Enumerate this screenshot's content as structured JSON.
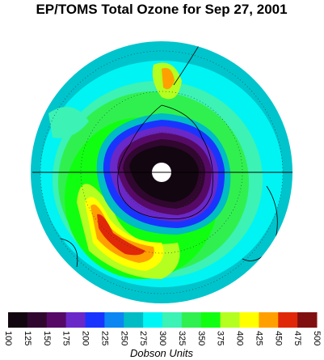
{
  "title": "EP/TOMS Total Ozone for Sep 27, 2001",
  "colorbar": {
    "label": "Dobson Units",
    "ticks": [
      100,
      125,
      150,
      175,
      200,
      225,
      250,
      275,
      300,
      325,
      350,
      375,
      400,
      425,
      450,
      475,
      500
    ],
    "colors": [
      "#120610",
      "#30072e",
      "#560a66",
      "#6a28c8",
      "#1a34ff",
      "#0c86f2",
      "#00bcc4",
      "#00f6f6",
      "#3cf2b4",
      "#30f050",
      "#10ff10",
      "#b4ff20",
      "#ffff00",
      "#ffa000",
      "#e02808",
      "#801010",
      "#401010"
    ]
  }
}
